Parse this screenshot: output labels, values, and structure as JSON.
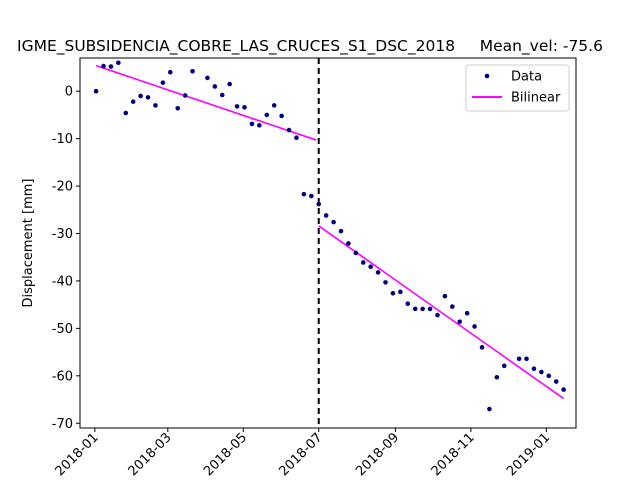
{
  "chart_data": {
    "type": "scatter",
    "title": "IGME_SUBSIDENCIA_COBRE_LAS_CRUCES_S1_DSC_2018     Mean_vel: -75.6",
    "xlabel": "",
    "ylabel": "Displacement [mm]",
    "x_ticks": [
      "2018-01",
      "2018-03",
      "2018-05",
      "2018-07",
      "2018-09",
      "2018-11",
      "2019-01"
    ],
    "y_ticks": [
      0,
      -10,
      -20,
      -30,
      -40,
      -50,
      -60,
      -70
    ],
    "xlim": [
      "2017-12-20",
      "2019-01-25"
    ],
    "ylim": [
      -71,
      7
    ],
    "breakpoint": "2018-07-01",
    "legend": {
      "placement": "top-right",
      "entries": [
        "Data",
        "Bilinear"
      ]
    },
    "colors": {
      "data": "#00007f",
      "bilinear": "#ff00ff",
      "breakpoint": "#000000"
    },
    "series": [
      {
        "name": "Data",
        "kind": "points",
        "points": [
          [
            "2018-01-02",
            0.0
          ],
          [
            "2018-01-08",
            5.3
          ],
          [
            "2018-01-14",
            5.2
          ],
          [
            "2018-01-20",
            6.0
          ],
          [
            "2018-01-26",
            -4.6
          ],
          [
            "2018-02-01",
            -2.2
          ],
          [
            "2018-02-07",
            -1.0
          ],
          [
            "2018-02-13",
            -1.3
          ],
          [
            "2018-02-19",
            -3.0
          ],
          [
            "2018-02-25",
            1.8
          ],
          [
            "2018-03-03",
            4.0
          ],
          [
            "2018-03-09",
            -3.6
          ],
          [
            "2018-03-15",
            -0.9
          ],
          [
            "2018-03-21",
            4.2
          ],
          [
            "2018-04-02",
            2.8
          ],
          [
            "2018-04-08",
            1.0
          ],
          [
            "2018-04-14",
            -0.8
          ],
          [
            "2018-04-20",
            1.5
          ],
          [
            "2018-04-26",
            -3.2
          ],
          [
            "2018-05-02",
            -3.4
          ],
          [
            "2018-05-08",
            -6.9
          ],
          [
            "2018-05-14",
            -7.2
          ],
          [
            "2018-05-20",
            -5.0
          ],
          [
            "2018-05-26",
            -3.0
          ],
          [
            "2018-06-01",
            -5.2
          ],
          [
            "2018-06-07",
            -8.2
          ],
          [
            "2018-06-13",
            -9.8
          ],
          [
            "2018-06-19",
            -21.7
          ],
          [
            "2018-06-25",
            -22.1
          ],
          [
            "2018-07-01",
            -23.8
          ],
          [
            "2018-07-07",
            -26.2
          ],
          [
            "2018-07-13",
            -27.6
          ],
          [
            "2018-07-19",
            -29.5
          ],
          [
            "2018-07-25",
            -32.1
          ],
          [
            "2018-07-31",
            -34.1
          ],
          [
            "2018-08-06",
            -36.1
          ],
          [
            "2018-08-12",
            -37.0
          ],
          [
            "2018-08-18",
            -38.2
          ],
          [
            "2018-08-24",
            -40.3
          ],
          [
            "2018-08-30",
            -42.6
          ],
          [
            "2018-09-05",
            -42.3
          ],
          [
            "2018-09-11",
            -44.8
          ],
          [
            "2018-09-17",
            -45.9
          ],
          [
            "2018-09-23",
            -45.9
          ],
          [
            "2018-09-29",
            -45.9
          ],
          [
            "2018-10-05",
            -47.2
          ],
          [
            "2018-10-11",
            -43.2
          ],
          [
            "2018-10-17",
            -45.4
          ],
          [
            "2018-10-23",
            -48.6
          ],
          [
            "2018-10-29",
            -46.8
          ],
          [
            "2018-11-04",
            -49.6
          ],
          [
            "2018-11-10",
            -54.0
          ],
          [
            "2018-11-16",
            -67.0
          ],
          [
            "2018-11-22",
            -60.3
          ],
          [
            "2018-11-28",
            -57.9
          ],
          [
            "2018-12-10",
            -56.4
          ],
          [
            "2018-12-16",
            -56.4
          ],
          [
            "2018-12-22",
            -58.5
          ],
          [
            "2018-12-28",
            -59.2
          ],
          [
            "2019-01-03",
            -60.0
          ],
          [
            "2019-01-09",
            -61.2
          ],
          [
            "2019-01-15",
            -62.9
          ]
        ]
      },
      {
        "name": "Bilinear",
        "kind": "segments",
        "segments": [
          [
            [
              "2018-01-02",
              5.4
            ],
            [
              "2018-06-29",
              -10.3
            ]
          ],
          [
            [
              "2018-07-01",
              -28.4
            ],
            [
              "2019-01-15",
              -64.8
            ]
          ]
        ]
      }
    ]
  }
}
